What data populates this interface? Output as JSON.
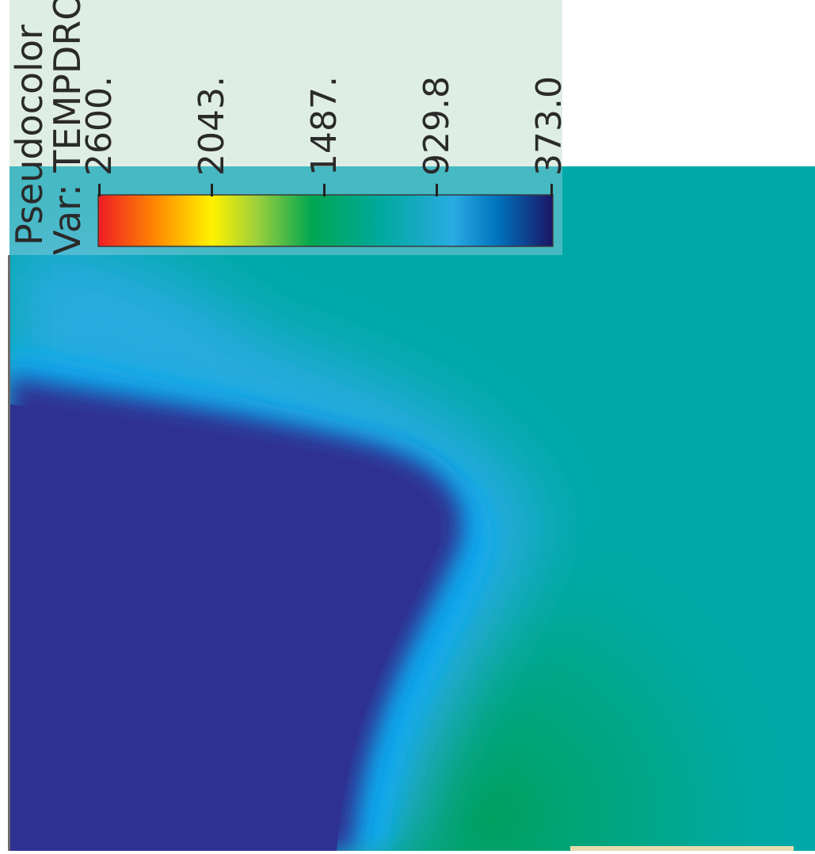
{
  "legend": {
    "title": "Pseudocolor",
    "var_label": "Var: TEMPDRO",
    "ticks": [
      "2600.",
      "2043.",
      "1487.",
      "929.8",
      "373.0"
    ],
    "max": 2600,
    "min": 373.0,
    "colormap": [
      "#ff0000",
      "#ff8c00",
      "#ffff00",
      "#00a050",
      "#00a8a8",
      "#00a0ff",
      "#1c1c8c"
    ]
  },
  "colors": {
    "cold_region": "#2e3192",
    "mid_field": "#00a9a8",
    "warm_spot": "#00a060",
    "light_blue": "#00aeef"
  },
  "chart_data": {
    "type": "heatmap",
    "title": "Pseudocolor",
    "variable": "Var: TEMPDRO",
    "colorbar_range": [
      373.0,
      2600
    ],
    "colorbar_ticks": [
      2600,
      2043,
      1487,
      929.8,
      373.0
    ],
    "orientation": "rotated 90 degrees counter-clockwise"
  }
}
